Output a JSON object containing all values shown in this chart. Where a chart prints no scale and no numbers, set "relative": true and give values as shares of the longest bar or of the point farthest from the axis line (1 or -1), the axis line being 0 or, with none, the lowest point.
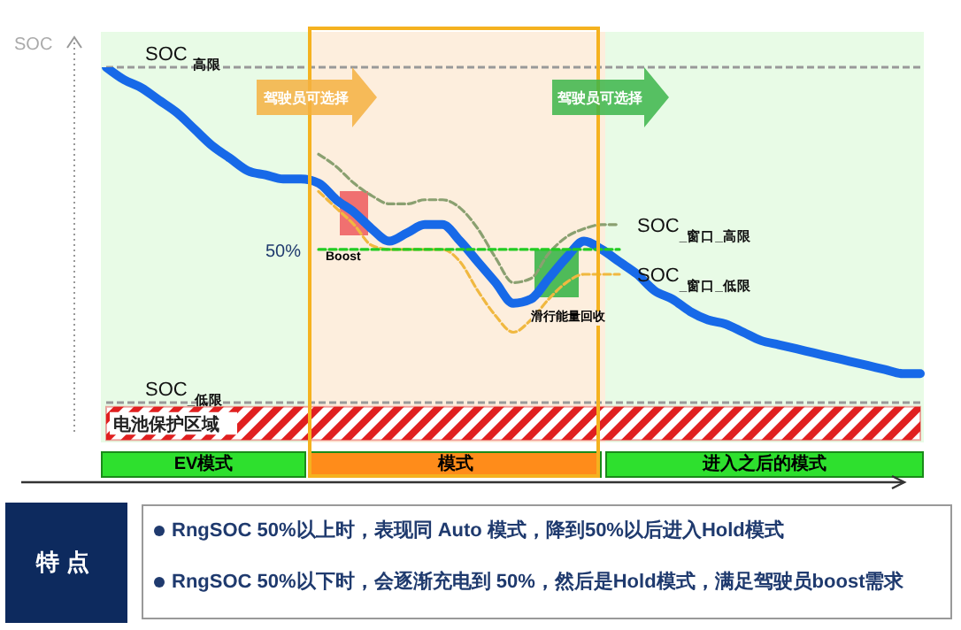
{
  "chart_data": {
    "type": "line",
    "relative": true,
    "ylabel": "SOC",
    "categories": [
      null,
      null,
      null,
      null,
      null,
      null,
      null,
      null,
      null,
      null,
      null,
      null,
      null,
      null,
      null,
      null,
      null,
      null,
      null,
      null,
      null,
      null,
      null,
      null,
      null,
      null,
      null,
      null,
      null,
      null,
      null,
      null,
      null,
      null,
      null,
      null,
      null,
      null,
      null,
      null,
      null,
      null,
      null,
      null,
      null,
      null,
      null
    ],
    "series": [
      {
        "color": "#1769e8",
        "values": [
          1.0,
          0.97,
          0.95,
          0.92,
          0.89,
          0.85,
          0.81,
          0.78,
          0.75,
          0.74,
          0.73,
          0.73,
          0.72,
          0.68,
          0.65,
          0.61,
          0.58,
          0.6,
          0.62,
          0.62,
          0.58,
          0.53,
          0.48,
          0.43,
          0.44,
          0.49,
          0.54,
          0.58,
          0.56,
          0.53,
          0.5,
          0.46,
          0.44,
          0.41,
          0.39,
          0.38,
          0.36,
          0.34,
          0.33,
          0.32,
          0.31,
          0.3,
          0.29,
          0.28,
          0.27,
          0.26,
          0.26
        ]
      },
      {
        "name": "SOC$_{_窗口_高限}$",
        "color": "#8aa070",
        "line_style": "dashed",
        "values": [
          null,
          null,
          null,
          null,
          null,
          null,
          null,
          null,
          null,
          null,
          null,
          null,
          0.79,
          0.76,
          0.72,
          0.69,
          0.67,
          0.67,
          0.68,
          0.68,
          0.66,
          0.61,
          0.54,
          0.48,
          0.49,
          0.55,
          0.59,
          0.61,
          0.62,
          0.62,
          null,
          null,
          null,
          null,
          null,
          null,
          null,
          null,
          null,
          null,
          null,
          null,
          null,
          null,
          null,
          null,
          null
        ]
      },
      {
        "name": "SOC$_{_窗口_低限}$",
        "color": "#f0b840",
        "line_style": "dashed",
        "values": [
          null,
          null,
          null,
          null,
          null,
          null,
          null,
          null,
          null,
          null,
          null,
          null,
          0.7,
          0.66,
          0.62,
          0.57,
          0.56,
          0.56,
          0.56,
          0.56,
          0.53,
          0.46,
          0.4,
          0.36,
          0.39,
          0.44,
          0.48,
          0.5,
          0.5,
          0.5,
          null,
          null,
          null,
          null,
          null,
          null,
          null,
          null,
          null,
          null,
          null,
          null,
          null,
          null,
          null,
          null,
          null
        ]
      },
      {
        "name": "50%",
        "color": "#22cc22",
        "line_style": "dashed",
        "values": [
          null,
          null,
          null,
          null,
          null,
          null,
          null,
          null,
          null,
          null,
          null,
          null,
          0.56,
          0.56,
          0.56,
          0.56,
          0.56,
          0.56,
          0.56,
          0.56,
          0.56,
          0.56,
          0.56,
          0.56,
          0.56,
          0.56,
          0.56,
          0.56,
          0.56,
          0.56,
          null,
          null,
          null,
          null,
          null,
          null,
          null,
          null,
          null,
          null,
          null,
          null,
          null,
          null,
          null,
          null,
          null
        ]
      }
    ],
    "ref_lines": [
      {
        "axis": "y",
        "value": 1.0,
        "label": "SOC $_{高限}$",
        "color": "#999999",
        "line_style": "dashed"
      },
      {
        "axis": "y",
        "value": 0.19,
        "label": "SOC$_{_低限}$",
        "color": "#999999",
        "line_style": "dashed"
      }
    ],
    "bands": [
      {
        "axis": "y",
        "from": 0.1,
        "to": 0.18,
        "label": "电池保护区域",
        "color": "#e02020"
      }
    ],
    "annotations": [
      "驾驶员可选择",
      "驾驶员可选择",
      "Boost",
      "滑行能量回收",
      "EV模式",
      "模式",
      "进入之后的模式",
      "特点",
      "RngSOC 50%以上时，表现同 Auto 模式，降到50%以后进入Hold模式",
      "RngSOC 50%以下时，会逐渐充电到 50%，然后是Hold模式，满足驾驶员boost需求"
    ]
  }
}
